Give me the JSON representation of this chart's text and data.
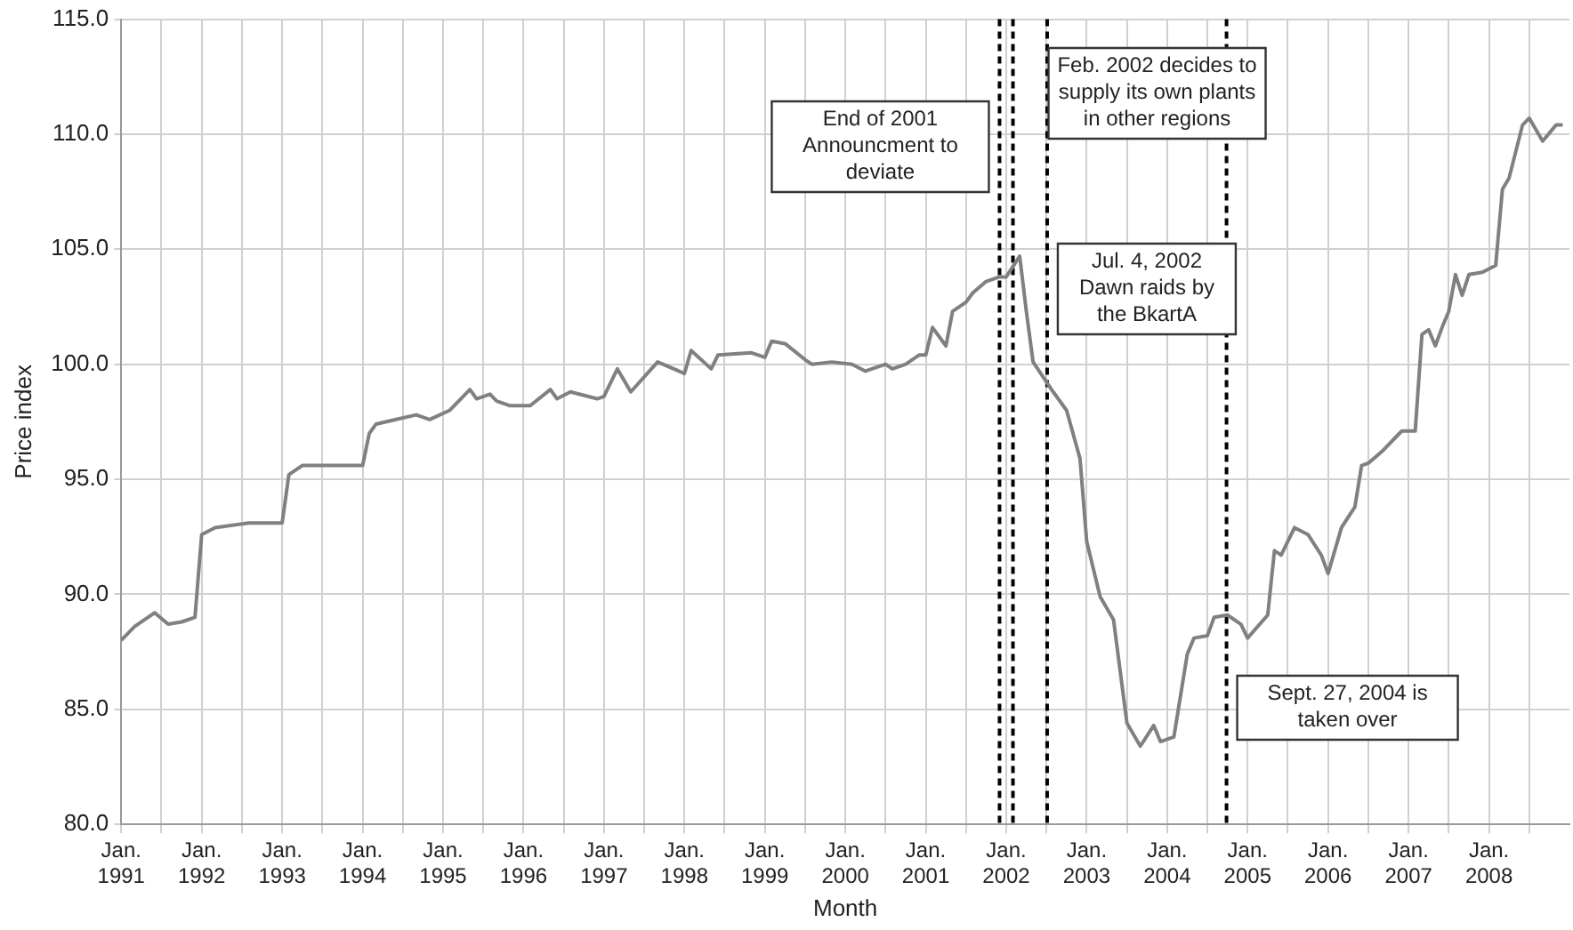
{
  "chart_data": {
    "type": "line",
    "xlabel": "Month",
    "ylabel": "Price index",
    "color": "#808080",
    "line_style": "solid",
    "marker": "none",
    "grid": true,
    "legend": false,
    "x": [
      "1991-01",
      "1991-03",
      "1991-06",
      "1991-08",
      "1991-10",
      "1991-12",
      "1992-01",
      "1992-03",
      "1992-08",
      "1993-01",
      "1993-02",
      "1993-04",
      "1994-01",
      "1994-02",
      "1994-03",
      "1994-06",
      "1994-09",
      "1994-11",
      "1995-02",
      "1995-05",
      "1995-06",
      "1995-08",
      "1995-09",
      "1995-11",
      "1996-02",
      "1996-05",
      "1996-06",
      "1996-08",
      "1996-12",
      "1997-01",
      "1997-03",
      "1997-05",
      "1997-09",
      "1998-01",
      "1998-02",
      "1998-05",
      "1998-06",
      "1998-11",
      "1999-01",
      "1999-02",
      "1999-04",
      "1999-07",
      "1999-08",
      "1999-11",
      "2000-02",
      "2000-04",
      "2000-07",
      "2000-08",
      "2000-10",
      "2000-12",
      "2001-01",
      "2001-02",
      "2001-04",
      "2001-05",
      "2001-07",
      "2001-08",
      "2001-10",
      "2001-12",
      "2002-01",
      "2002-03",
      "2002-04",
      "2002-05",
      "2002-08",
      "2002-10",
      "2002-12",
      "2003-01",
      "2003-03",
      "2003-05",
      "2003-07",
      "2003-09",
      "2003-11",
      "2003-12",
      "2004-02",
      "2004-04",
      "2004-05",
      "2004-07",
      "2004-08",
      "2004-10",
      "2004-12",
      "2005-01",
      "2005-04",
      "2005-05",
      "2005-06",
      "2005-08",
      "2005-10",
      "2005-12",
      "2006-01",
      "2006-03",
      "2006-05",
      "2006-06",
      "2006-07",
      "2006-09",
      "2006-11",
      "2006-12",
      "2007-02",
      "2007-03",
      "2007-04",
      "2007-05",
      "2007-06",
      "2007-07",
      "2007-08",
      "2007-09",
      "2007-10",
      "2007-12",
      "2008-02",
      "2008-03",
      "2008-04",
      "2008-06",
      "2008-07",
      "2008-09",
      "2008-11",
      "2008-12"
    ],
    "values": [
      88.0,
      88.6,
      89.2,
      88.7,
      88.8,
      89.0,
      92.6,
      92.9,
      93.1,
      93.1,
      95.2,
      95.6,
      95.6,
      97.0,
      97.4,
      97.6,
      97.8,
      97.6,
      98.0,
      98.9,
      98.5,
      98.7,
      98.4,
      98.2,
      98.2,
      98.9,
      98.5,
      98.8,
      98.5,
      98.6,
      99.8,
      98.8,
      100.1,
      99.6,
      100.6,
      99.8,
      100.4,
      100.5,
      100.3,
      101.0,
      100.9,
      100.2,
      100.0,
      100.1,
      100.0,
      99.7,
      100.0,
      99.8,
      100.0,
      100.4,
      100.4,
      101.6,
      100.8,
      102.3,
      102.7,
      103.1,
      103.6,
      103.8,
      103.8,
      104.7,
      102.3,
      100.1,
      98.8,
      98.0,
      95.9,
      92.3,
      89.9,
      88.9,
      84.4,
      83.4,
      84.3,
      83.6,
      83.8,
      87.4,
      88.1,
      88.2,
      89.0,
      89.1,
      88.7,
      88.1,
      89.1,
      91.9,
      91.7,
      92.9,
      92.6,
      91.7,
      90.9,
      92.9,
      93.8,
      95.6,
      95.7,
      96.2,
      96.8,
      97.1,
      97.1,
      101.3,
      101.5,
      100.8,
      101.6,
      102.3,
      103.9,
      103.0,
      103.9,
      104.0,
      104.3,
      107.6,
      108.1,
      110.4,
      110.7,
      109.7,
      110.4,
      110.4
    ],
    "xlim": [
      "1991-01",
      "2009-01"
    ],
    "xticks": [
      {
        "value": "1991-01",
        "label": "Jan. 1991"
      },
      {
        "value": "1991-07",
        "label": null
      },
      {
        "value": "1992-01",
        "label": "Jan. 1992"
      },
      {
        "value": "1992-07",
        "label": null
      },
      {
        "value": "1993-01",
        "label": "Jan. 1993"
      },
      {
        "value": "1993-07",
        "label": null
      },
      {
        "value": "1994-01",
        "label": "Jan. 1994"
      },
      {
        "value": "1994-07",
        "label": null
      },
      {
        "value": "1995-01",
        "label": "Jan. 1995"
      },
      {
        "value": "1995-07",
        "label": null
      },
      {
        "value": "1996-01",
        "label": "Jan. 1996"
      },
      {
        "value": "1996-07",
        "label": null
      },
      {
        "value": "1997-01",
        "label": "Jan. 1997"
      },
      {
        "value": "1997-07",
        "label": null
      },
      {
        "value": "1998-01",
        "label": "Jan. 1998"
      },
      {
        "value": "1998-07",
        "label": null
      },
      {
        "value": "1999-01",
        "label": "Jan. 1999"
      },
      {
        "value": "1999-07",
        "label": null
      },
      {
        "value": "2000-01",
        "label": "Jan. 2000"
      },
      {
        "value": "2000-07",
        "label": null
      },
      {
        "value": "2001-01",
        "label": "Jan. 2001"
      },
      {
        "value": "2001-07",
        "label": null
      },
      {
        "value": "2002-01",
        "label": "Jan. 2002"
      },
      {
        "value": "2002-07",
        "label": null
      },
      {
        "value": "2003-01",
        "label": "Jan. 2003"
      },
      {
        "value": "2003-07",
        "label": null
      },
      {
        "value": "2004-01",
        "label": "Jan. 2004"
      },
      {
        "value": "2004-07",
        "label": null
      },
      {
        "value": "2005-01",
        "label": "Jan. 2005"
      },
      {
        "value": "2005-07",
        "label": null
      },
      {
        "value": "2006-01",
        "label": "Jan. 2006"
      },
      {
        "value": "2006-07",
        "label": null
      },
      {
        "value": "2007-01",
        "label": "Jan. 2007"
      },
      {
        "value": "2007-07",
        "label": null
      },
      {
        "value": "2008-01",
        "label": "Jan. 2008"
      },
      {
        "value": "2008-07",
        "label": null
      }
    ],
    "ylim": [
      80,
      115
    ],
    "yticks": [
      {
        "value": 80,
        "label": "80.0"
      },
      {
        "value": 85,
        "label": "85.0"
      },
      {
        "value": 90,
        "label": "90.0"
      },
      {
        "value": 95,
        "label": "95.0"
      },
      {
        "value": 100,
        "label": "100.0"
      },
      {
        "value": 105,
        "label": "105.0"
      },
      {
        "value": 110,
        "label": "110.0"
      },
      {
        "value": 115,
        "label": "115.0"
      }
    ],
    "ref_lines": [
      {
        "axis": "x",
        "value": "2001-12",
        "label": "End of 2001 Announcment to deviate",
        "color": "#000000",
        "line_style": "dashed"
      },
      {
        "axis": "x",
        "value": "2002-02",
        "label": "Feb. 2002 decides to supply its own plants in other regions",
        "color": "#000000",
        "line_style": "dashed"
      },
      {
        "axis": "x",
        "value": "2002-07-04",
        "label": "Jul. 4, 2002 Dawn raids by the BkartA",
        "color": "#000000",
        "line_style": "dashed"
      },
      {
        "axis": "x",
        "value": "2004-09-27",
        "label": "Sept. 27, 2004 is taken over",
        "color": "#000000",
        "line_style": "dashed"
      }
    ]
  }
}
